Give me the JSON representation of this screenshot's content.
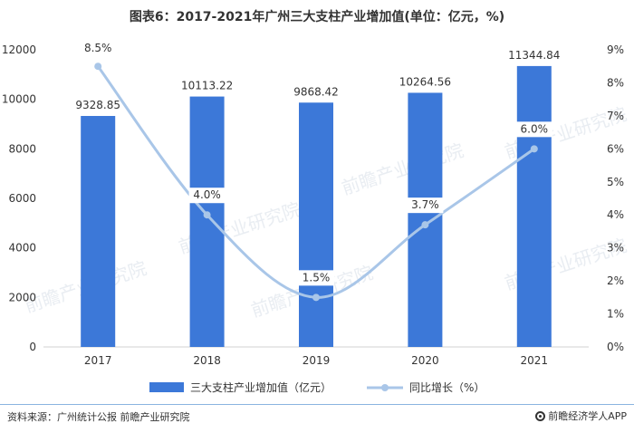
{
  "title": "图表6：2017-2021年广州三大支柱产业增加值(单位：亿元，%)",
  "source": "资料来源：广州统计公报 前瞻产业研究院",
  "brand": "前瞻经济学人APP",
  "watermark": "前瞻产业研究院",
  "colors": {
    "bar": "#3c78d8",
    "line": "#a9c6e8",
    "axis": "#d0d0d0",
    "text": "#333333"
  },
  "chart_data": {
    "type": "bar",
    "categories": [
      "2017",
      "2018",
      "2019",
      "2020",
      "2021"
    ],
    "series": [
      {
        "name": "三大支柱产业增加值（亿元）",
        "type": "bar",
        "axis": "left",
        "values": [
          9328.85,
          10113.22,
          9868.42,
          10264.56,
          11344.84
        ],
        "labels": [
          "9328.85",
          "10113.22",
          "9868.42",
          "10264.56",
          "11344.84"
        ]
      },
      {
        "name": "同比增长（%）",
        "type": "line",
        "axis": "right",
        "values": [
          8.5,
          4.0,
          1.5,
          3.7,
          6.0
        ],
        "labels": [
          "8.5%",
          "4.0%",
          "1.5%",
          "3.7%",
          "6.0%"
        ]
      }
    ],
    "y_left": {
      "min": 0,
      "max": 12000,
      "ticks": [
        0,
        2000,
        4000,
        6000,
        8000,
        10000,
        12000
      ],
      "tick_labels": [
        "0",
        "2000",
        "4000",
        "6000",
        "8000",
        "10000",
        "12000"
      ]
    },
    "y_right": {
      "min": 0,
      "max": 9,
      "ticks": [
        0,
        1,
        2,
        3,
        4,
        5,
        6,
        7,
        8,
        9
      ],
      "tick_labels": [
        "0%",
        "1%",
        "2%",
        "3%",
        "4%",
        "5%",
        "6%",
        "7%",
        "8%",
        "9%"
      ]
    },
    "legend_position": "bottom",
    "grid": false
  }
}
